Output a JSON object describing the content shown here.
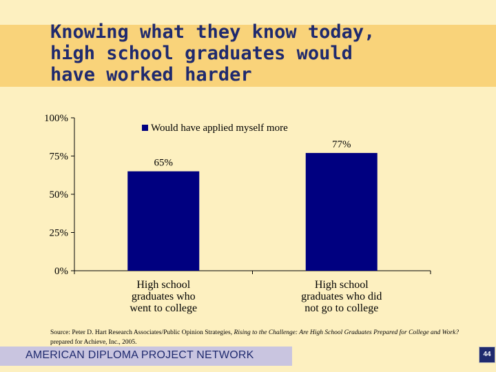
{
  "slide": {
    "title": "Knowing what they know today,\nhigh school graduates would\nhave worked harder",
    "source_prefix": "Source: Peter D. Hart Research Associates/Public Opinion Strategies, ",
    "source_italic": "Rising to the Challenge: Are High School Graduates Prepared for College and Work?",
    "source_suffix": " prepared for Achieve, Inc., 2005.",
    "footer": "AMERICAN DIPLOMA PROJECT NETWORK",
    "page_number": "44"
  },
  "colors": {
    "background": "#fdf0c0",
    "title_band": "#f9d37a",
    "title_text": "#1f2a6e",
    "bar": "#000080",
    "footer_band": "#c9c5e0"
  },
  "chart_data": {
    "type": "bar",
    "categories": [
      "High school graduates who went to college",
      "High school graduates who did not go to college"
    ],
    "category_lines": [
      [
        "High school",
        "graduates who",
        "went to college"
      ],
      [
        "High school",
        "graduates who did",
        "not go to college"
      ]
    ],
    "series": [
      {
        "name": "Would have applied myself more",
        "values": [
          65,
          77
        ]
      }
    ],
    "data_labels": [
      "65%",
      "77%"
    ],
    "ylim": [
      0,
      100
    ],
    "yticks": [
      0,
      25,
      50,
      75,
      100
    ],
    "ytick_labels": [
      "0%",
      "25%",
      "50%",
      "75%",
      "100%"
    ],
    "legend_position": "top",
    "grid": false
  }
}
